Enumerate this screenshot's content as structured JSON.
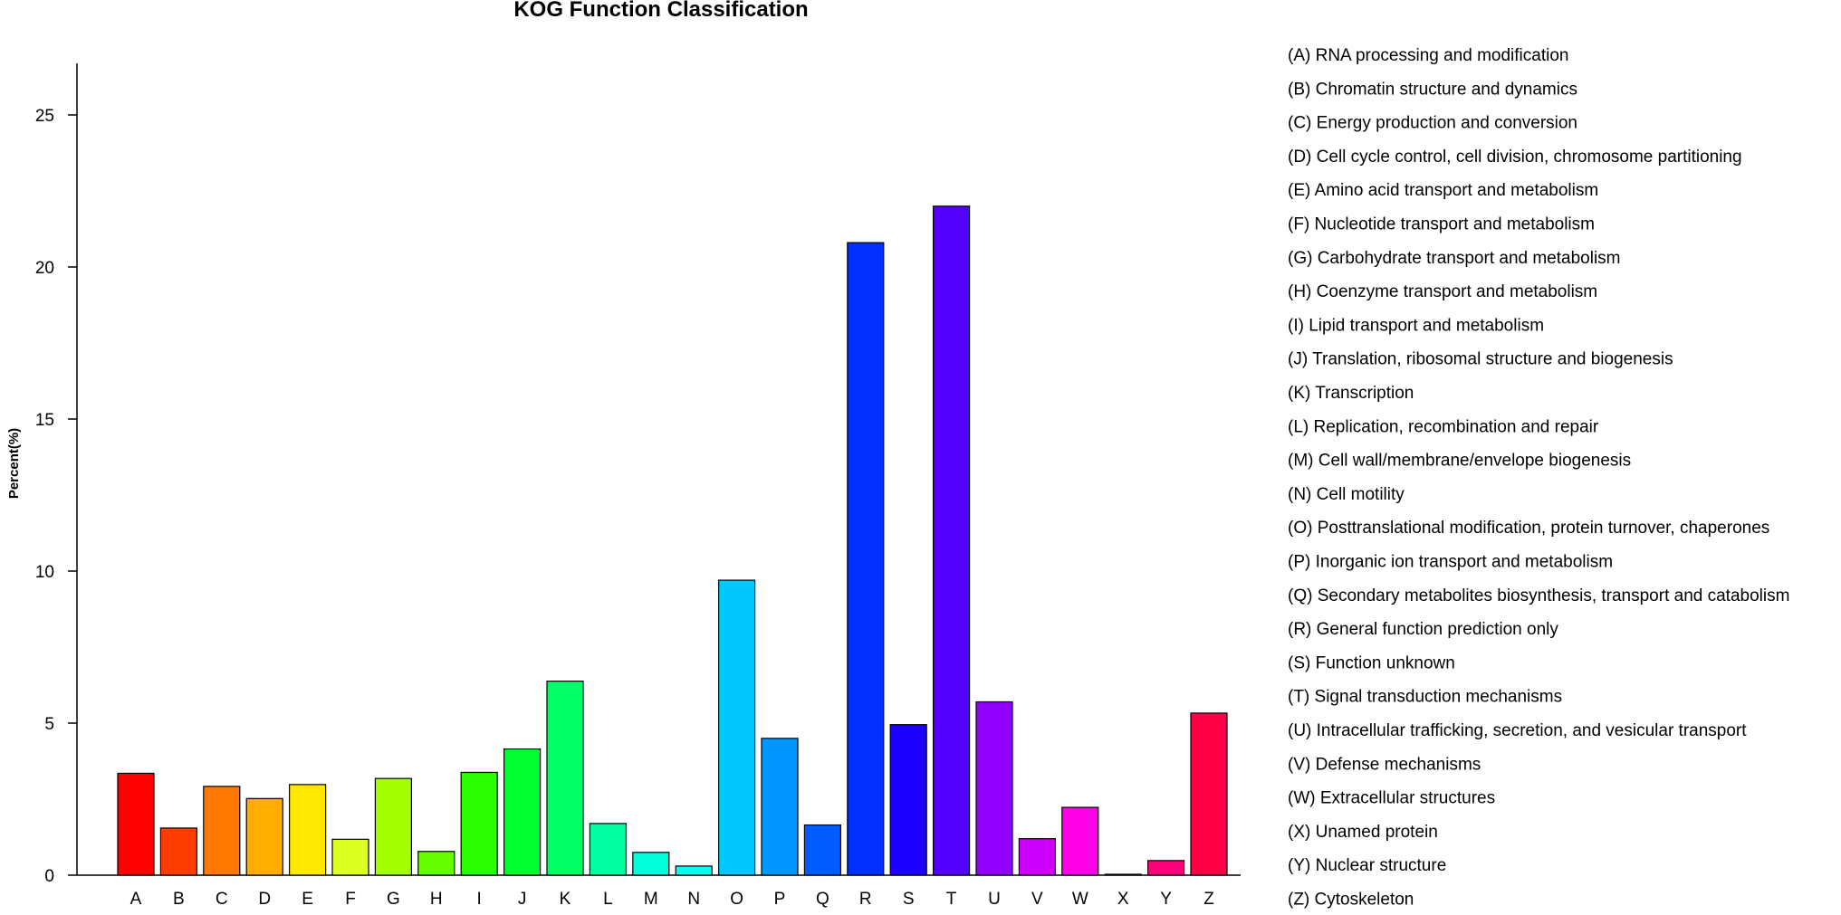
{
  "chart_data": {
    "type": "bar",
    "title": "KOG Function Classification",
    "xlabel": "",
    "ylabel": "Percent(%)",
    "ylim": [
      0,
      27
    ],
    "yticks": [
      0,
      5,
      10,
      15,
      20,
      25
    ],
    "grid": false,
    "legend_position": "right",
    "categories": [
      "A",
      "B",
      "C",
      "D",
      "E",
      "F",
      "G",
      "H",
      "I",
      "J",
      "K",
      "L",
      "M",
      "N",
      "O",
      "P",
      "Q",
      "R",
      "S",
      "T",
      "U",
      "V",
      "W",
      "X",
      "Y",
      "Z"
    ],
    "values": [
      3.35,
      1.55,
      2.92,
      2.52,
      2.98,
      1.18,
      3.18,
      0.78,
      3.38,
      4.15,
      6.38,
      1.7,
      0.75,
      0.3,
      9.7,
      4.5,
      1.65,
      20.8,
      4.95,
      22.0,
      5.7,
      1.2,
      2.23,
      0.02,
      0.48,
      5.33
    ],
    "colors": [
      "#ff0000",
      "#ff3c00",
      "#ff7800",
      "#ffae00",
      "#ffe800",
      "#ddff22",
      "#a6ff00",
      "#66ff00",
      "#2aff00",
      "#00ff30",
      "#00ff66",
      "#00ffa0",
      "#00ffd8",
      "#00fff0",
      "#00c8ff",
      "#0095ff",
      "#005cff",
      "#0030ff",
      "#1c00ff",
      "#5400ff",
      "#9000ff",
      "#cc00ff",
      "#ff00e6",
      "#ff00a8",
      "#ff0078",
      "#ff0046"
    ],
    "legend": [
      "(A) RNA processing and modification",
      "(B) Chromatin structure and dynamics",
      "(C) Energy production and conversion",
      "(D) Cell cycle control, cell division, chromosome partitioning",
      "(E) Amino acid transport and metabolism",
      "(F) Nucleotide transport and metabolism",
      "(G) Carbohydrate transport and metabolism",
      "(H) Coenzyme transport and metabolism",
      "(I) Lipid transport and metabolism",
      "(J) Translation, ribosomal structure and biogenesis",
      "(K) Transcription",
      "(L) Replication, recombination and repair",
      "(M) Cell wall/membrane/envelope biogenesis",
      "(N) Cell motility",
      "(O) Posttranslational modification, protein turnover, chaperones",
      "(P) Inorganic ion transport and metabolism",
      "(Q) Secondary metabolites biosynthesis, transport and catabolism",
      "(R) General function prediction only",
      "(S) Function unknown",
      "(T) Signal transduction mechanisms",
      "(U) Intracellular trafficking, secretion, and vesicular transport",
      "(V) Defense mechanisms",
      "(W) Extracellular structures",
      "(X) Unamed protein",
      "(Y) Nuclear structure",
      "(Z) Cytoskeleton"
    ]
  }
}
